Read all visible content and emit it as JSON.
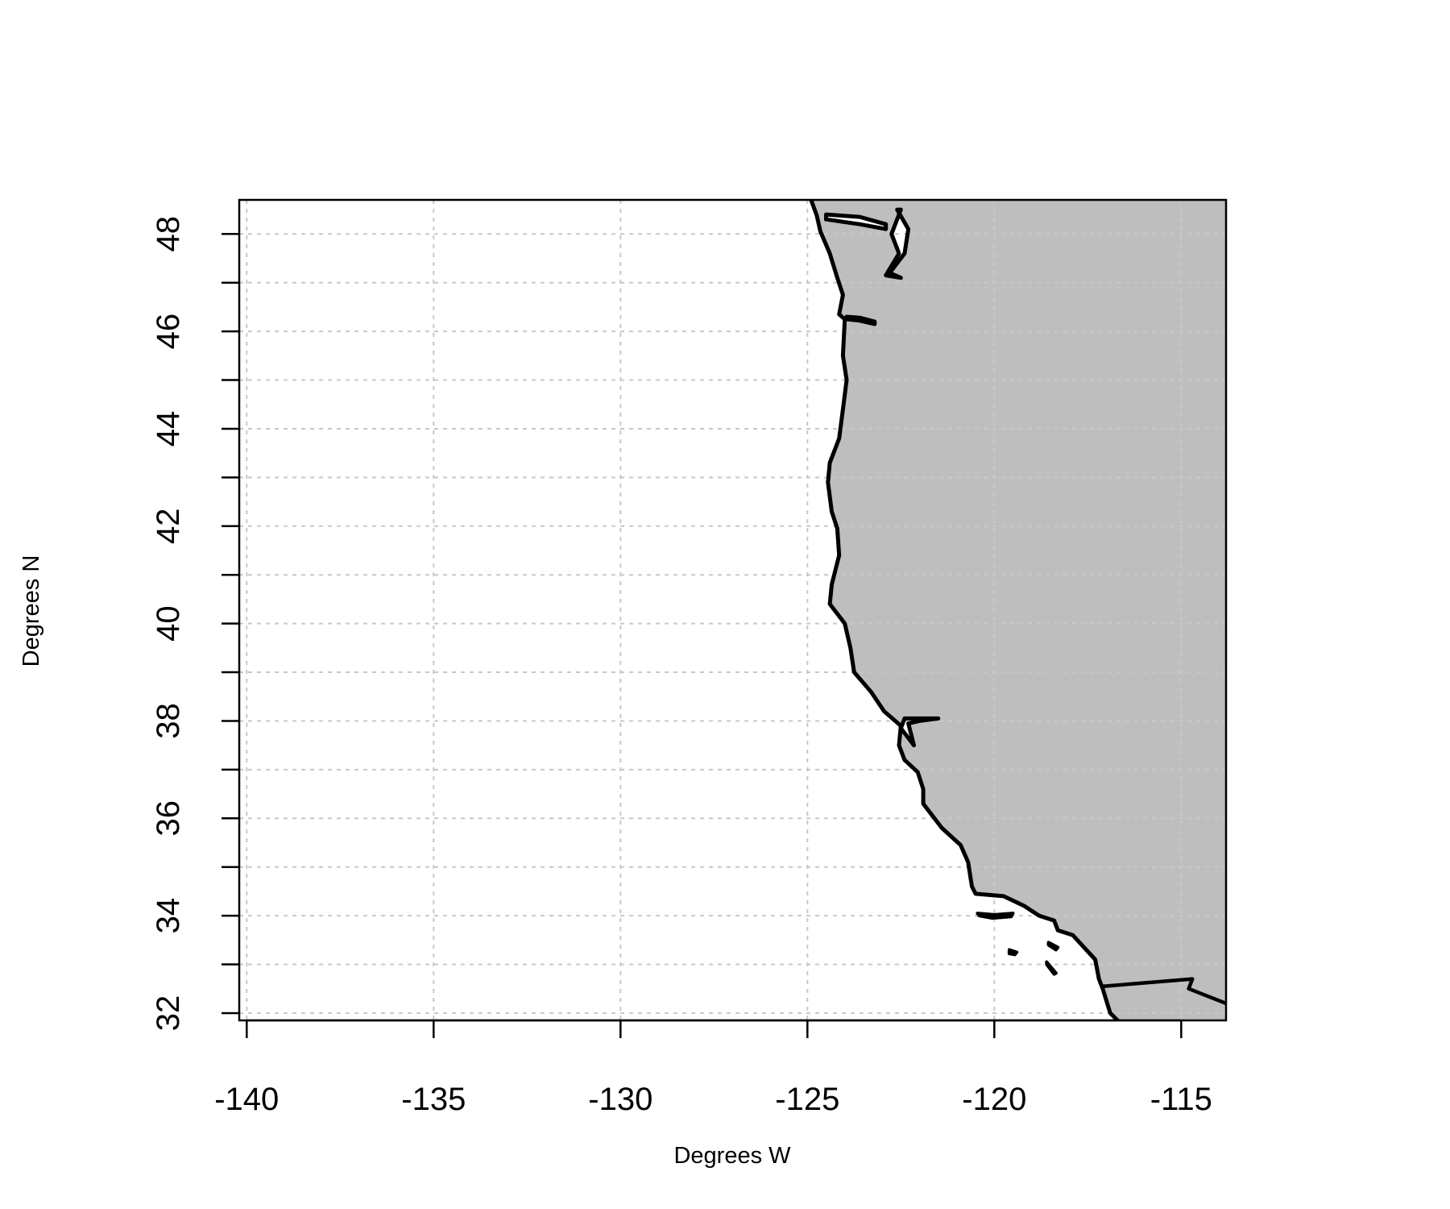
{
  "chart_data": {
    "type": "map",
    "xlabel": "Degrees W",
    "ylabel": "Degrees N",
    "xlim": [
      -140.2,
      -113.8
    ],
    "ylim": [
      31.85,
      48.7
    ],
    "x_ticks": [
      -140,
      -135,
      -130,
      -125,
      -120,
      -115
    ],
    "y_ticks": [
      32,
      34,
      36,
      38,
      40,
      42,
      44,
      46,
      48
    ],
    "y_minor_ticks": [
      33,
      35,
      37,
      39,
      41,
      43,
      45,
      47
    ],
    "grid": true,
    "land_color": "#bebebe",
    "ocean_color": "#ffffff",
    "region": "US West Coast (Washington, Oregon, California) and northern Baja California",
    "coastline": [
      [
        -124.9,
        48.7
      ],
      [
        -124.75,
        48.38
      ],
      [
        -124.65,
        48.05
      ],
      [
        -124.4,
        47.6
      ],
      [
        -124.2,
        47.1
      ],
      [
        -124.05,
        46.75
      ],
      [
        -124.15,
        46.35
      ],
      [
        -124.0,
        46.25
      ],
      [
        -124.05,
        45.5
      ],
      [
        -123.95,
        45.0
      ],
      [
        -124.05,
        44.4
      ],
      [
        -124.15,
        43.8
      ],
      [
        -124.4,
        43.3
      ],
      [
        -124.45,
        42.9
      ],
      [
        -124.35,
        42.3
      ],
      [
        -124.2,
        41.95
      ],
      [
        -124.15,
        41.4
      ],
      [
        -124.35,
        40.8
      ],
      [
        -124.4,
        40.4
      ],
      [
        -124.0,
        40.0
      ],
      [
        -123.85,
        39.5
      ],
      [
        -123.75,
        39.0
      ],
      [
        -123.3,
        38.6
      ],
      [
        -122.95,
        38.2
      ],
      [
        -122.5,
        37.9
      ],
      [
        -122.55,
        37.5
      ],
      [
        -122.4,
        37.2
      ],
      [
        -122.05,
        36.95
      ],
      [
        -121.9,
        36.6
      ],
      [
        -121.9,
        36.3
      ],
      [
        -121.4,
        35.8
      ],
      [
        -120.9,
        35.45
      ],
      [
        -120.7,
        35.1
      ],
      [
        -120.6,
        34.6
      ],
      [
        -120.5,
        34.45
      ],
      [
        -119.75,
        34.4
      ],
      [
        -119.2,
        34.2
      ],
      [
        -118.8,
        34.0
      ],
      [
        -118.4,
        33.9
      ],
      [
        -118.3,
        33.7
      ],
      [
        -117.9,
        33.6
      ],
      [
        -117.3,
        33.1
      ],
      [
        -117.2,
        32.7
      ],
      [
        -117.1,
        32.5
      ],
      [
        -116.9,
        32.0
      ],
      [
        -116.7,
        31.85
      ]
    ],
    "border_us_mexico": [
      [
        -117.1,
        32.55
      ],
      [
        -114.7,
        32.7
      ],
      [
        -114.8,
        32.5
      ],
      [
        -113.8,
        32.2
      ]
    ],
    "islands": [
      {
        "name": "Santa Rosa/Santa Cruz",
        "points": [
          [
            -120.45,
            34.05
          ],
          [
            -120.0,
            34.02
          ],
          [
            -119.5,
            34.05
          ],
          [
            -119.55,
            33.98
          ],
          [
            -120.05,
            33.95
          ],
          [
            -120.4,
            34.0
          ]
        ]
      },
      {
        "name": "Santa Barbara",
        "points": [
          [
            -119.6,
            33.3
          ],
          [
            -119.4,
            33.25
          ],
          [
            -119.45,
            33.2
          ],
          [
            -119.6,
            33.22
          ]
        ]
      },
      {
        "name": "Santa Catalina",
        "points": [
          [
            -118.55,
            33.45
          ],
          [
            -118.3,
            33.35
          ],
          [
            -118.35,
            33.3
          ],
          [
            -118.55,
            33.4
          ]
        ]
      },
      {
        "name": "San Clemente",
        "points": [
          [
            -118.6,
            33.05
          ],
          [
            -118.35,
            32.82
          ],
          [
            -118.4,
            32.8
          ],
          [
            -118.6,
            33.0
          ]
        ]
      }
    ],
    "bays": [
      {
        "name": "Puget Sound",
        "points": [
          [
            -122.6,
            48.5
          ],
          [
            -122.3,
            48.1
          ],
          [
            -122.4,
            47.6
          ],
          [
            -122.8,
            47.2
          ],
          [
            -122.5,
            47.1
          ],
          [
            -122.9,
            47.15
          ],
          [
            -122.55,
            47.6
          ],
          [
            -122.75,
            48.0
          ],
          [
            -122.5,
            48.5
          ]
        ]
      },
      {
        "name": "Juan de Fuca",
        "points": [
          [
            -124.5,
            48.3
          ],
          [
            -123.6,
            48.2
          ],
          [
            -122.9,
            48.1
          ],
          [
            -122.9,
            48.2
          ],
          [
            -123.6,
            48.35
          ],
          [
            -124.5,
            48.4
          ]
        ]
      },
      {
        "name": "Columbia River",
        "points": [
          [
            -123.95,
            46.25
          ],
          [
            -123.6,
            46.22
          ],
          [
            -123.2,
            46.15
          ],
          [
            -123.2,
            46.2
          ],
          [
            -123.6,
            46.28
          ],
          [
            -123.95,
            46.3
          ]
        ]
      },
      {
        "name": "San Francisco Bay",
        "points": [
          [
            -122.5,
            37.85
          ],
          [
            -122.4,
            38.05
          ],
          [
            -122.0,
            38.05
          ],
          [
            -121.5,
            38.05
          ],
          [
            -122.0,
            38.0
          ],
          [
            -122.3,
            37.95
          ],
          [
            -122.15,
            37.5
          ],
          [
            -122.25,
            37.6
          ],
          [
            -122.45,
            37.8
          ]
        ]
      }
    ]
  }
}
